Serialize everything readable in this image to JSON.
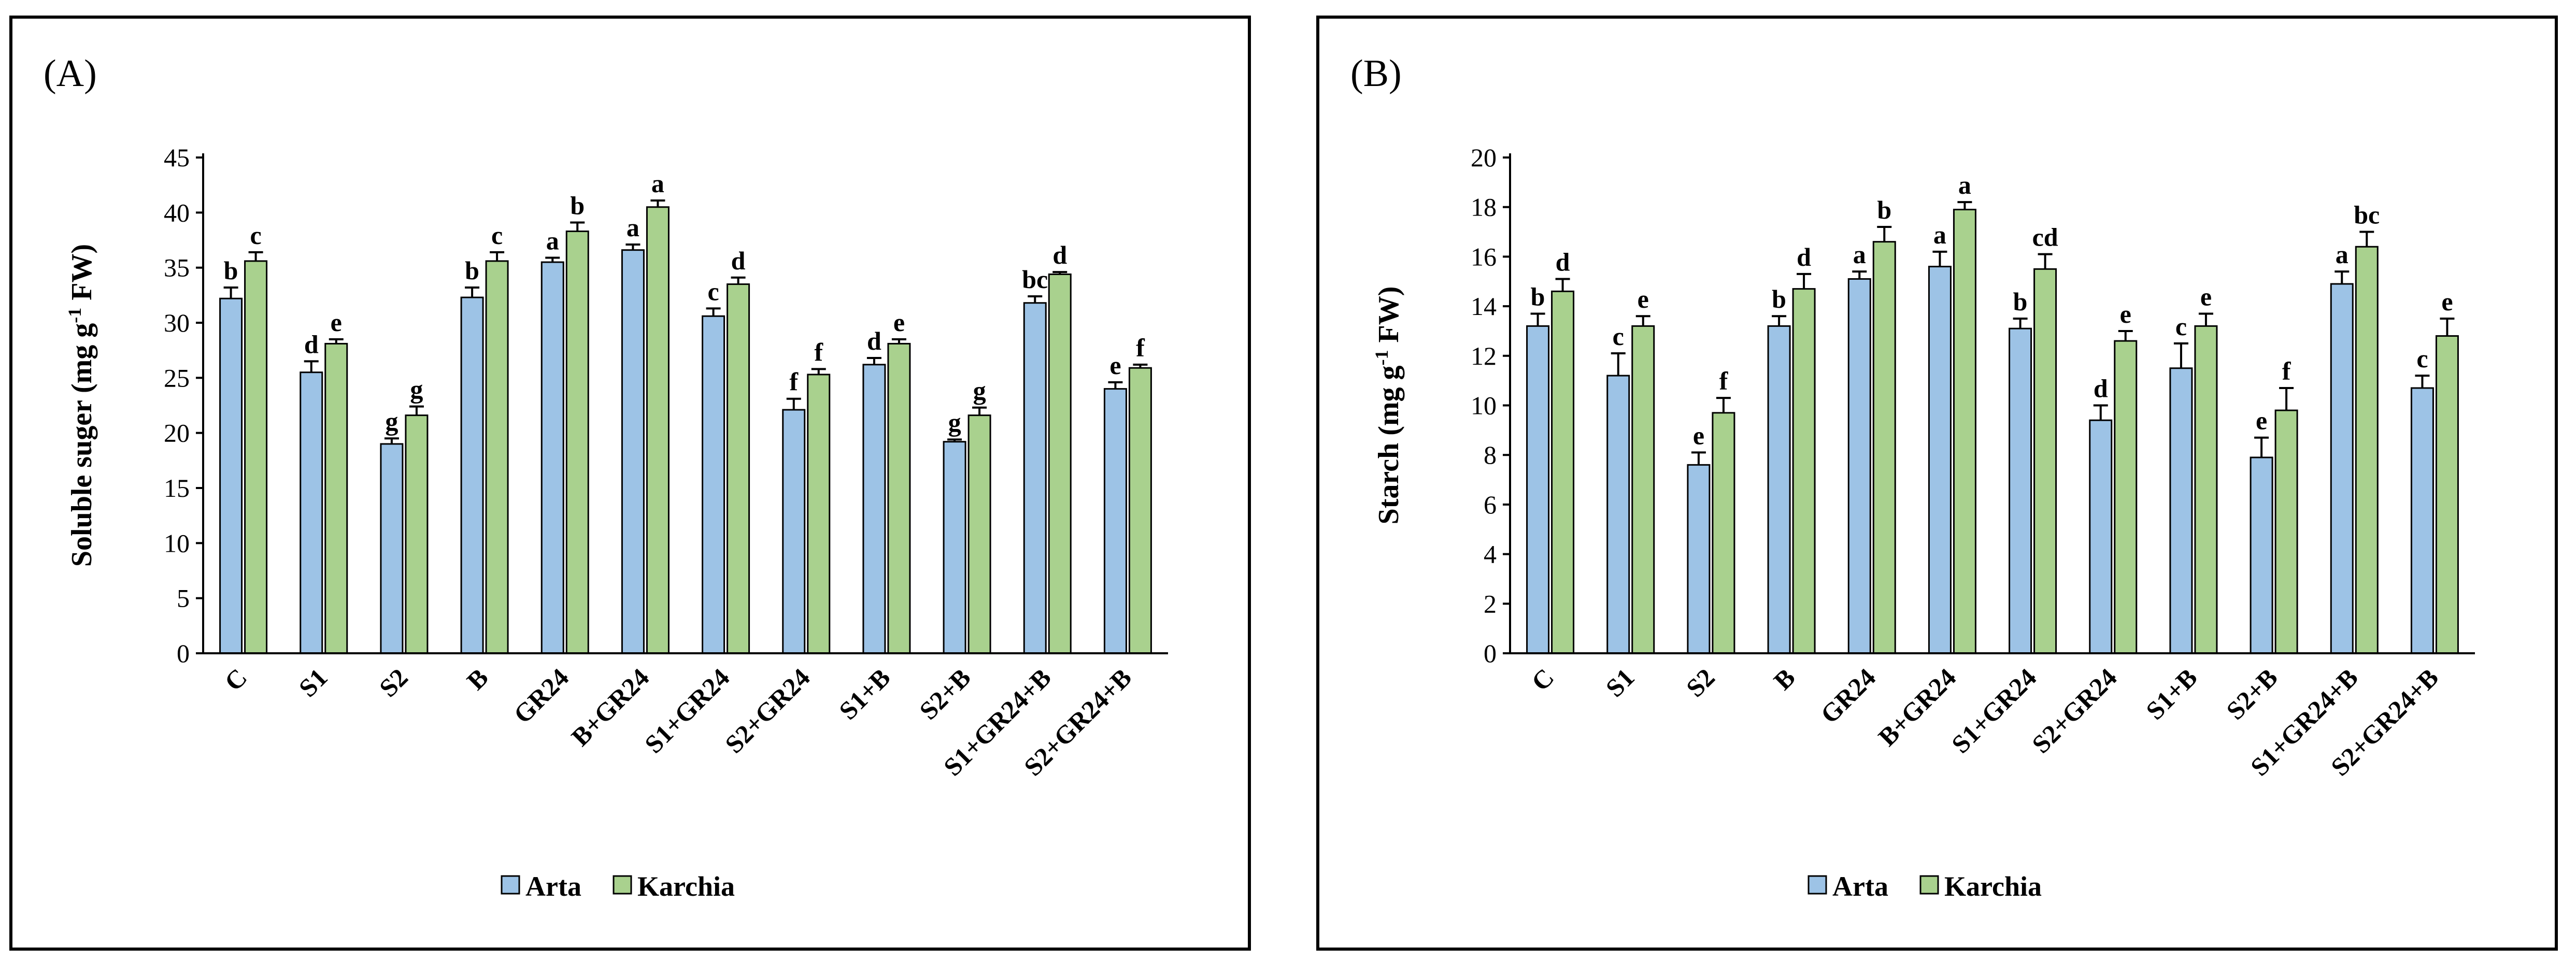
{
  "chart_data": [
    {
      "type": "bar",
      "panel_label": "(A)",
      "ylabel_main": "Soluble suger (mg g",
      "ylabel_sup": "-1",
      "ylabel_tail": " FW)",
      "ylim": [
        0,
        45
      ],
      "yticks": [
        0,
        5,
        10,
        15,
        20,
        25,
        30,
        35,
        40,
        45
      ],
      "categories": [
        "C",
        "S1",
        "S2",
        "B",
        "GR24",
        "B+GR24",
        "S1+GR24",
        "S2+GR24",
        "S1+B",
        "S2+B",
        "S1+GR24+B",
        "S2+GR24+B"
      ],
      "series": [
        {
          "name": "Arta",
          "color": "#9DC3E6",
          "values": [
            32.2,
            25.5,
            19.0,
            32.3,
            35.5,
            36.6,
            30.6,
            22.1,
            26.2,
            19.2,
            31.8,
            24.0
          ],
          "errors": [
            1.0,
            1.0,
            0.5,
            0.9,
            0.4,
            0.5,
            0.7,
            1.0,
            0.6,
            0.2,
            0.6,
            0.6
          ],
          "letters": [
            "b",
            "d",
            "g",
            "b",
            "a",
            "a",
            "c",
            "f",
            "d",
            "g",
            "bc",
            "e"
          ]
        },
        {
          "name": "Karchia",
          "color": "#A9D18E",
          "values": [
            35.6,
            28.1,
            21.6,
            35.6,
            38.3,
            40.5,
            33.5,
            25.3,
            28.1,
            21.6,
            34.4,
            25.9
          ],
          "errors": [
            0.8,
            0.4,
            0.8,
            0.8,
            0.8,
            0.6,
            0.6,
            0.5,
            0.4,
            0.7,
            0.2,
            0.3
          ],
          "letters": [
            "c",
            "e",
            "g",
            "c",
            "b",
            "a",
            "d",
            "f",
            "e",
            "g",
            "d",
            "f"
          ]
        }
      ],
      "legend": [
        "Arta",
        "Karchia"
      ]
    },
    {
      "type": "bar",
      "panel_label": "(B)",
      "ylabel_main": "Starch (mg g",
      "ylabel_sup": "-1",
      "ylabel_tail": " FW)",
      "ylim": [
        0,
        20
      ],
      "yticks": [
        0,
        2,
        4,
        6,
        8,
        10,
        12,
        14,
        16,
        18,
        20
      ],
      "categories": [
        "C",
        "S1",
        "S2",
        "B",
        "GR24",
        "B+GR24",
        "S1+GR24",
        "S2+GR24",
        "S1+B",
        "S2+B",
        "S1+GR24+B",
        "S2+GR24+B"
      ],
      "series": [
        {
          "name": "Arta",
          "color": "#9DC3E6",
          "values": [
            13.2,
            11.2,
            7.6,
            13.2,
            15.1,
            15.6,
            13.1,
            9.4,
            11.5,
            7.9,
            14.9,
            10.7
          ],
          "errors": [
            0.5,
            0.9,
            0.5,
            0.4,
            0.3,
            0.6,
            0.4,
            0.6,
            1.0,
            0.8,
            0.5,
            0.5
          ],
          "letters": [
            "b",
            "c",
            "e",
            "b",
            "a",
            "a",
            "b",
            "d",
            "c",
            "e",
            "a",
            "c"
          ]
        },
        {
          "name": "Karchia",
          "color": "#A9D18E",
          "values": [
            14.6,
            13.2,
            9.7,
            14.7,
            16.6,
            17.9,
            15.5,
            12.6,
            13.2,
            9.8,
            16.4,
            12.8
          ],
          "errors": [
            0.5,
            0.4,
            0.6,
            0.6,
            0.6,
            0.3,
            0.6,
            0.4,
            0.5,
            0.9,
            0.6,
            0.7
          ],
          "letters": [
            "d",
            "e",
            "f",
            "d",
            "b",
            "a",
            "cd",
            "e",
            "e",
            "f",
            "bc",
            "e"
          ]
        }
      ],
      "legend": [
        "Arta",
        "Karchia"
      ]
    }
  ]
}
